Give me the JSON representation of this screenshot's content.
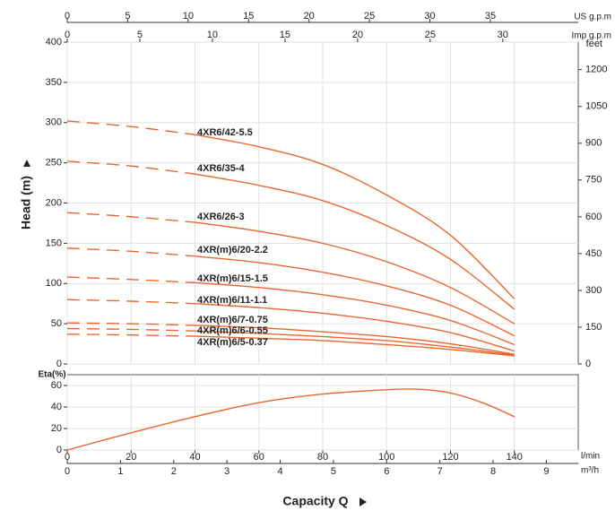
{
  "chart_data": [
    {
      "type": "line",
      "ylabel": "Head (m)",
      "ylim": [
        0,
        400
      ],
      "yticks": [
        0,
        50,
        100,
        150,
        200,
        250,
        300,
        350,
        400
      ],
      "y2label": "feet",
      "y2lim": [
        0,
        1312.3
      ],
      "y2ticks": [
        0,
        150,
        300,
        450,
        600,
        750,
        900,
        1050,
        1200
      ],
      "top_axes": [
        {
          "label": "US g.p.m",
          "lim": [
            0,
            42.27
          ],
          "ticks": [
            0,
            5,
            10,
            15,
            20,
            25,
            30,
            35
          ]
        },
        {
          "label": "Imp g.p.m",
          "lim": [
            0,
            35.2
          ],
          "ticks": [
            0,
            5,
            10,
            15,
            20,
            25,
            30
          ]
        }
      ],
      "xlim": [
        0,
        160
      ],
      "xticks": [
        0,
        20,
        40,
        60,
        80,
        100,
        120,
        140
      ],
      "grid": true,
      "dashed_until": 40,
      "color": "#e8672f",
      "x": [
        0,
        20,
        40,
        60,
        80,
        100,
        120,
        140
      ],
      "series": [
        {
          "name": "4XR6/42-5.5",
          "values": [
            302,
            295,
            285,
            270,
            248,
            210,
            160,
            81
          ]
        },
        {
          "name": "4XR6/35-4",
          "values": [
            252,
            246,
            236,
            222,
            203,
            172,
            130,
            68
          ]
        },
        {
          "name": "4XR6/26-3",
          "values": [
            188,
            183,
            176,
            165,
            150,
            127,
            95,
            50
          ]
        },
        {
          "name": "4XR(m)6/20-2.2",
          "values": [
            144,
            140,
            134,
            126,
            114,
            97,
            73,
            35
          ]
        },
        {
          "name": "4XR(m)6/15-1.5",
          "values": [
            108,
            105,
            101,
            95,
            86,
            73,
            54,
            24
          ]
        },
        {
          "name": "4XR(m)6/11-1.1",
          "values": [
            80,
            78,
            75,
            70,
            63,
            53,
            39,
            16
          ]
        },
        {
          "name": "4XR(m)6/7-0.75",
          "values": [
            51,
            50,
            48,
            45,
            40,
            34,
            25,
            12
          ]
        },
        {
          "name": "4XR(m)6/6-0.55",
          "values": [
            44,
            43,
            41,
            38,
            34,
            29,
            21,
            11
          ]
        },
        {
          "name": "4XR(m)6/5-0.37",
          "values": [
            37,
            36,
            34.5,
            32,
            29,
            24,
            18,
            10
          ]
        }
      ]
    },
    {
      "type": "line",
      "ylabel": "Eta(%)",
      "ylim": [
        0,
        70
      ],
      "yticks": [
        0,
        20,
        40,
        60
      ],
      "grid": true,
      "color": "#e8672f",
      "xlabel": "l/min",
      "xlim": [
        0,
        160
      ],
      "xticks": [
        0,
        20,
        40,
        60,
        80,
        100,
        120,
        140
      ],
      "x2label": "m³/h",
      "x2lim": [
        0,
        9.6
      ],
      "x2ticks": [
        0,
        1,
        2,
        3,
        4,
        5,
        6,
        7,
        8,
        9
      ],
      "xtitle": "Capacity Q",
      "x": [
        0,
        20,
        40,
        60,
        80,
        100,
        110,
        120,
        130,
        140
      ],
      "values": [
        0,
        16,
        31,
        44,
        52,
        56,
        56.5,
        53,
        44,
        31
      ]
    }
  ]
}
